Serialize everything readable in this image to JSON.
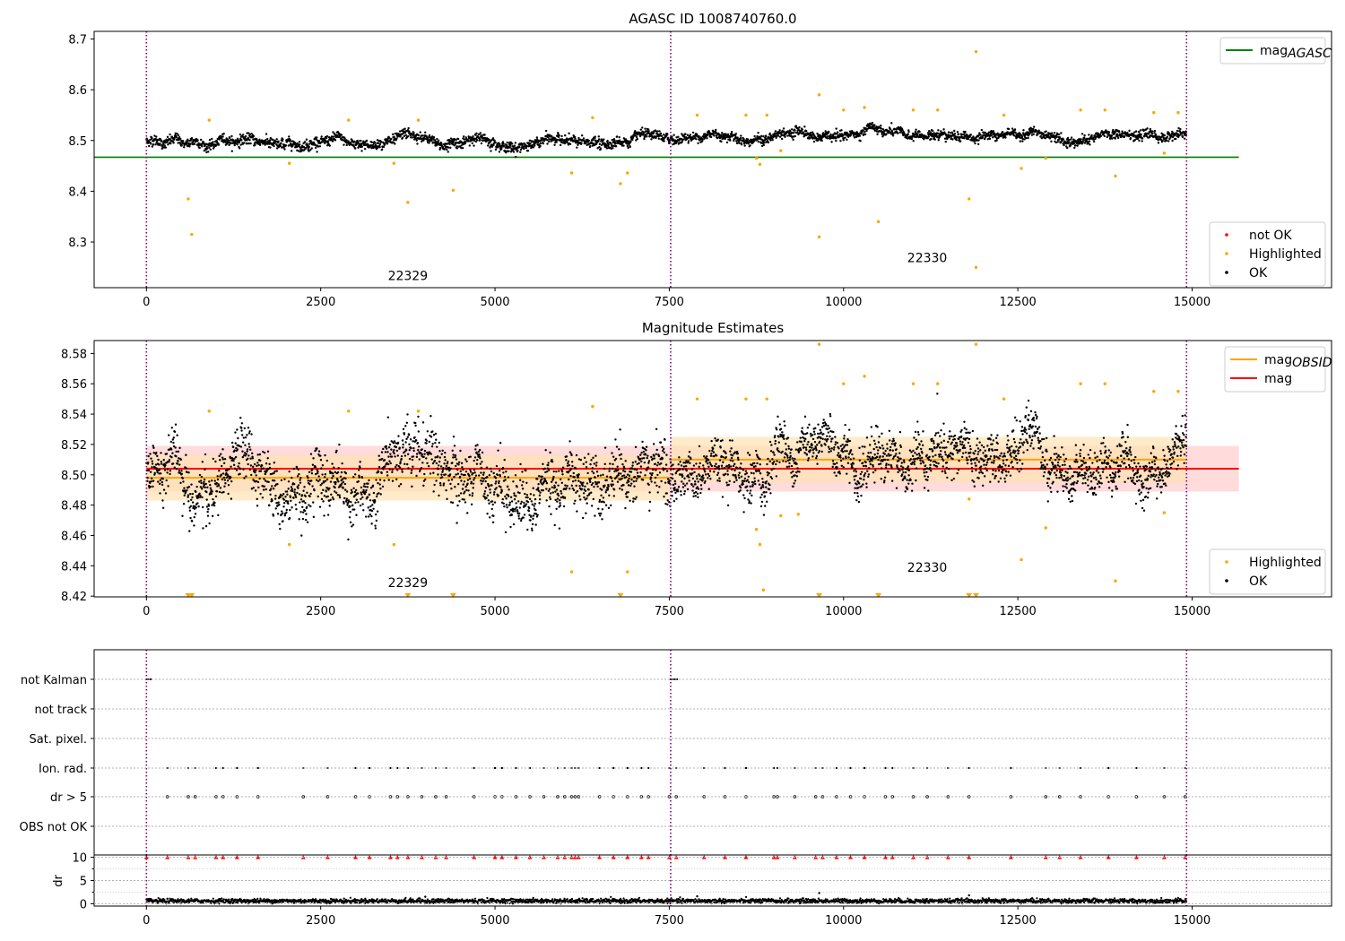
{
  "colors": {
    "mag_agasc": "#008000",
    "mag_obsid": "#ffa500",
    "mag": "#ff0000",
    "highlighted": "#ffa500",
    "ok": "#000000",
    "not_ok": "#ff0000",
    "obs_boundary": "#800080",
    "band_mag": "#ffcccc",
    "band_obsid": "#ffe3b3"
  },
  "chart_data": [
    {
      "type": "scatter",
      "title": "AGASC ID 1008740760.0",
      "xlabel": "",
      "ylabel": "",
      "xlim": [
        -750,
        17000
      ],
      "ylim": [
        8.21,
        8.715
      ],
      "xticks": [
        0,
        2500,
        5000,
        7500,
        10000,
        12500,
        15000
      ],
      "yticks": [
        8.3,
        8.4,
        8.5,
        8.6,
        8.7
      ],
      "obs_boundaries": [
        0,
        7520,
        14920
      ],
      "obsid_labels": [
        {
          "text": "22329",
          "x": 3750,
          "y": 8.225
        },
        {
          "text": "22330",
          "x": 11200,
          "y": 8.26
        }
      ],
      "hlines": [
        {
          "name": "mag_AGASC",
          "y": 8.467,
          "x_range": [
            -750,
            15670
          ]
        }
      ],
      "legends": [
        {
          "position": "top-right",
          "entries": [
            {
              "label": "mag",
              "sub": "AGASC",
              "kind": "line",
              "color_key": "mag_agasc"
            }
          ]
        },
        {
          "position": "bottom-right",
          "entries": [
            {
              "label": "not OK",
              "kind": "dot",
              "color_key": "not_ok"
            },
            {
              "label": "Highlighted",
              "kind": "dot",
              "color_key": "highlighted"
            },
            {
              "label": "OK",
              "kind": "dot",
              "color_key": "ok"
            }
          ]
        }
      ],
      "series": [
        {
          "name": "OK",
          "segments": [
            {
              "x_range": [
                0,
                7520
              ],
              "center": 8.497,
              "amplitude": 0.02
            },
            {
              "x_range": [
                7520,
                14920
              ],
              "center": 8.509,
              "amplitude": 0.018
            }
          ]
        },
        {
          "name": "Highlighted",
          "x": [
            600,
            650,
            900,
            2050,
            2900,
            3550,
            3750,
            3900,
            4400,
            6100,
            6400,
            6800,
            6900,
            7900,
            8600,
            8750,
            8800,
            8900,
            9100,
            9650,
            9650,
            10000,
            10300,
            10500,
            11000,
            11350,
            11800,
            11900,
            11900,
            12300,
            12550,
            12900,
            13400,
            13750,
            13900,
            14450,
            14600,
            14800
          ],
          "y": [
            8.385,
            8.315,
            8.54,
            8.455,
            8.54,
            8.455,
            8.378,
            8.54,
            8.402,
            8.436,
            8.545,
            8.415,
            8.436,
            8.55,
            8.55,
            8.465,
            8.453,
            8.55,
            8.48,
            8.59,
            8.31,
            8.56,
            8.565,
            8.34,
            8.56,
            8.56,
            8.385,
            8.675,
            8.25,
            8.55,
            8.445,
            8.465,
            8.56,
            8.56,
            8.43,
            8.555,
            8.475,
            8.555
          ]
        }
      ]
    },
    {
      "type": "scatter",
      "title": "Magnitude Estimates",
      "xlabel": "",
      "ylabel": "",
      "xlim": [
        -750,
        17000
      ],
      "ylim": [
        8.4195,
        8.5885
      ],
      "xticks": [
        0,
        2500,
        5000,
        7500,
        10000,
        12500,
        15000
      ],
      "yticks": [
        8.42,
        8.44,
        8.46,
        8.48,
        8.5,
        8.52,
        8.54,
        8.56,
        8.58
      ],
      "obs_boundaries": [
        0,
        7520,
        14920
      ],
      "obsid_labels": [
        {
          "text": "22329",
          "x": 3750,
          "y": 8.426
        },
        {
          "text": "22330",
          "x": 11200,
          "y": 8.436
        }
      ],
      "bands": [
        {
          "name": "mag",
          "x_range": [
            0,
            15670
          ],
          "y_range": [
            8.489,
            8.519
          ],
          "color_key": "band_mag"
        },
        {
          "name": "mag_OBSID",
          "x_range": [
            0,
            7520
          ],
          "y_range": [
            8.483,
            8.513
          ],
          "color_key": "band_obsid"
        },
        {
          "name": "mag_OBSID",
          "x_range": [
            7520,
            14920
          ],
          "y_range": [
            8.495,
            8.525
          ],
          "color_key": "band_obsid"
        }
      ],
      "hlines": [
        {
          "name": "mag",
          "y": 8.504,
          "x_range": [
            0,
            15670
          ],
          "color_key": "mag"
        },
        {
          "name": "mag_OBSID",
          "y": 8.498,
          "x_range": [
            0,
            7520
          ],
          "color_key": "mag_obsid"
        },
        {
          "name": "mag_OBSID",
          "y": 8.51,
          "x_range": [
            7520,
            14920
          ],
          "color_key": "mag_obsid"
        }
      ],
      "legends": [
        {
          "position": "top-right",
          "entries": [
            {
              "label": "mag",
              "sub": "OBSID",
              "kind": "line",
              "color_key": "mag_obsid"
            },
            {
              "label": "mag",
              "kind": "line",
              "color_key": "mag"
            }
          ]
        },
        {
          "position": "bottom-right",
          "entries": [
            {
              "label": "Highlighted",
              "kind": "dot",
              "color_key": "highlighted"
            },
            {
              "label": "OK",
              "kind": "dot",
              "color_key": "ok"
            }
          ]
        }
      ],
      "series": [
        {
          "name": "OK",
          "segments": [
            {
              "x_range": [
                0,
                7520
              ],
              "center": 8.497,
              "amplitude": 0.035
            },
            {
              "x_range": [
                7520,
                14920
              ],
              "center": 8.509,
              "amplitude": 0.03
            }
          ]
        },
        {
          "name": "Highlighted",
          "x": [
            900,
            2050,
            2900,
            3550,
            3900,
            6100,
            6400,
            6900,
            7900,
            8600,
            8750,
            8800,
            8850,
            8900,
            9100,
            9350,
            9650,
            10000,
            10300,
            11000,
            11350,
            11800,
            11900,
            12300,
            12550,
            12900,
            13400,
            13750,
            13900,
            14450,
            14600,
            14800
          ],
          "y": [
            8.542,
            8.454,
            8.542,
            8.454,
            8.542,
            8.436,
            8.545,
            8.436,
            8.55,
            8.55,
            8.464,
            8.454,
            8.424,
            8.55,
            8.473,
            8.474,
            8.586,
            8.56,
            8.565,
            8.56,
            8.56,
            8.484,
            8.586,
            8.55,
            8.444,
            8.465,
            8.56,
            8.56,
            8.43,
            8.555,
            8.475,
            8.555
          ]
        },
        {
          "name": "Highlighted (below axis)",
          "x": [
            600,
            650,
            3750,
            4400,
            6800,
            9650,
            10500,
            11800,
            11900
          ],
          "y": [
            8.4195,
            8.4195,
            8.4195,
            8.4195,
            8.4195,
            8.4195,
            8.4195,
            8.4195,
            8.4195
          ]
        }
      ]
    },
    {
      "type": "scatter",
      "title": "",
      "xlabel": "",
      "ylabel": "",
      "xlim": [
        -750,
        17000
      ],
      "categories": [
        "not Kalman",
        "not track",
        "Sat. pixel.",
        "Ion. rad.",
        "dr > 5",
        "OBS not OK"
      ],
      "obs_boundaries": [
        0,
        7520,
        14920
      ],
      "flags": [
        {
          "category": "not Kalman",
          "x": [
            0,
            30,
            60,
            7520,
            7550,
            7580,
            7610
          ]
        },
        {
          "category": "Ion. rad.",
          "x": [
            300,
            600,
            700,
            1000,
            1100,
            1300,
            1600,
            2250,
            2600,
            3000,
            3200,
            3500,
            3600,
            3750,
            3950,
            4150,
            4300,
            4700,
            5000,
            5100,
            5300,
            5500,
            5700,
            5900,
            6000,
            6100,
            6150,
            6200,
            6500,
            6700,
            6900,
            7100,
            7200,
            7500,
            7600,
            8000,
            8300,
            8600,
            9000,
            9050,
            9300,
            9600,
            9700,
            9900,
            10100,
            10300,
            10600,
            10700,
            11000,
            11200,
            11500,
            11800,
            12400,
            12900,
            13100,
            13400,
            13800,
            14200,
            14600,
            14900
          ]
        },
        {
          "category": "dr > 5",
          "x": [
            300,
            600,
            700,
            1000,
            1100,
            1300,
            1600,
            2250,
            2600,
            3000,
            3200,
            3500,
            3600,
            3750,
            3950,
            4150,
            4300,
            4700,
            5000,
            5100,
            5300,
            5500,
            5700,
            5900,
            6000,
            6100,
            6150,
            6200,
            6500,
            6700,
            6900,
            7100,
            7200,
            7500,
            7600,
            8000,
            8300,
            8600,
            9000,
            9050,
            9300,
            9600,
            9700,
            9900,
            10100,
            10300,
            10600,
            10700,
            11000,
            11200,
            11500,
            11800,
            12400,
            12900,
            13100,
            13400,
            13800,
            14200,
            14600,
            14900
          ]
        }
      ]
    },
    {
      "type": "scatter",
      "title": "",
      "xlabel": "",
      "ylabel": "dr",
      "xlim": [
        -750,
        17000
      ],
      "ylim": [
        -0.5,
        10.5
      ],
      "xticks": [
        0,
        2500,
        5000,
        7500,
        10000,
        12500,
        15000
      ],
      "yticks": [
        0,
        5,
        10
      ],
      "yticks_minor": [
        2.5,
        7.5
      ],
      "obs_boundaries": [
        0,
        7520,
        14920
      ],
      "series": [
        {
          "name": "dr",
          "baseline": 0.6,
          "amplitude": 0.6,
          "spikes": [
            {
              "x": 9650,
              "y": 2.3
            },
            {
              "x": 11800,
              "y": 1.8
            },
            {
              "x": 4000,
              "y": 1.5
            },
            {
              "x": 7900,
              "y": 1.6
            }
          ]
        },
        {
          "name": "dr > 5",
          "y": 10,
          "x": [
            0,
            300,
            600,
            700,
            1000,
            1100,
            1300,
            1600,
            2250,
            2600,
            3000,
            3200,
            3500,
            3600,
            3750,
            3950,
            4150,
            4300,
            4700,
            5000,
            5100,
            5300,
            5500,
            5700,
            5900,
            6000,
            6100,
            6150,
            6200,
            6500,
            6700,
            6900,
            7100,
            7200,
            7500,
            7600,
            8000,
            8300,
            8600,
            9000,
            9050,
            9300,
            9600,
            9700,
            9900,
            10100,
            10300,
            10600,
            10700,
            11000,
            11200,
            11500,
            11800,
            12400,
            12900,
            13100,
            13400,
            13800,
            14200,
            14600,
            14900
          ]
        }
      ]
    }
  ]
}
